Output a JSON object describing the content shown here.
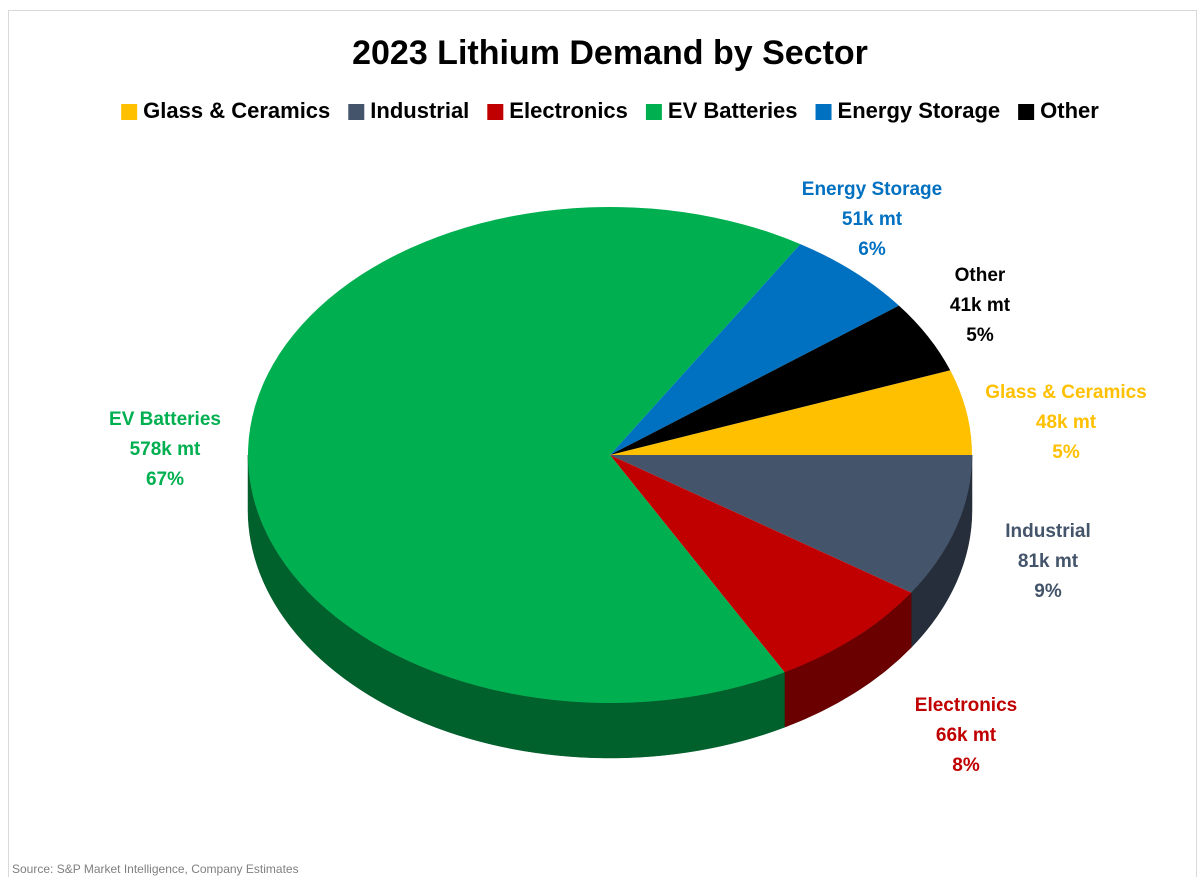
{
  "chart_data": {
    "type": "pie",
    "title": "2023 Lithium Demand by Sector",
    "categories": [
      "Glass & Ceramics",
      "Industrial",
      "Electronics",
      "EV Batteries",
      "Energy Storage",
      "Other"
    ],
    "values": [
      48,
      81,
      66,
      578,
      51,
      41
    ],
    "value_labels": [
      "48k mt",
      "81k mt",
      "66k mt",
      "578k mt",
      "51k mt",
      "41k mt"
    ],
    "percents": [
      5,
      9,
      8,
      67,
      6,
      5
    ],
    "percent_labels": [
      "5%",
      "9%",
      "8%",
      "67%",
      "6%",
      "5%"
    ],
    "colors": [
      "#ffc000",
      "#44546a",
      "#c00000",
      "#00b050",
      "#0070c0",
      "#000000"
    ],
    "legend": "top",
    "source": "Source: S&P Market Intelligence, Company Estimates"
  }
}
